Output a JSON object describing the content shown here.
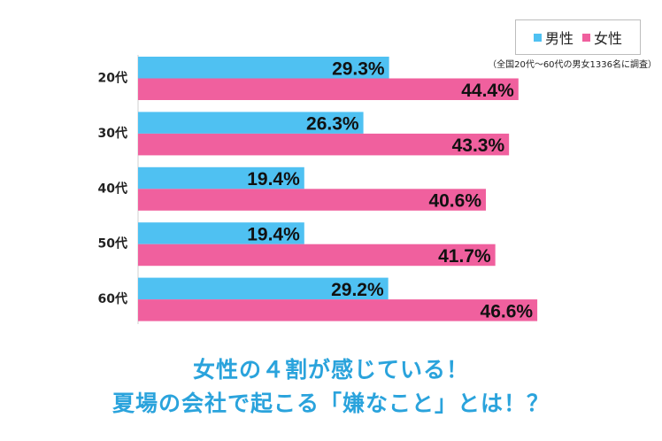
{
  "legend": {
    "male_label": "男性",
    "female_label": "女性"
  },
  "note": "（全国20代〜60代の男女1336名に調査）",
  "headline": {
    "line1": "女性の４割が感じている！",
    "line2": "夏場の会社で起こる「嫌なこと」とは！？"
  },
  "colors": {
    "male": "#4fc1f2",
    "female": "#f0609e",
    "headline": "#2aa3dc"
  },
  "chart_data": {
    "type": "bar",
    "orientation": "horizontal",
    "categories": [
      "20代",
      "30代",
      "40代",
      "50代",
      "60代"
    ],
    "series": [
      {
        "name": "男性",
        "values": [
          29.3,
          26.3,
          19.4,
          19.4,
          29.2
        ],
        "labels": [
          "29.3%",
          "26.3%",
          "19.4%",
          "19.4%",
          "29.2%"
        ]
      },
      {
        "name": "女性",
        "values": [
          44.4,
          43.3,
          40.6,
          41.7,
          46.6
        ],
        "labels": [
          "44.4%",
          "43.3%",
          "40.6%",
          "41.7%",
          "46.6%"
        ]
      }
    ],
    "xlim": [
      0,
      50
    ],
    "grid": false,
    "legend_position": "top-right"
  }
}
